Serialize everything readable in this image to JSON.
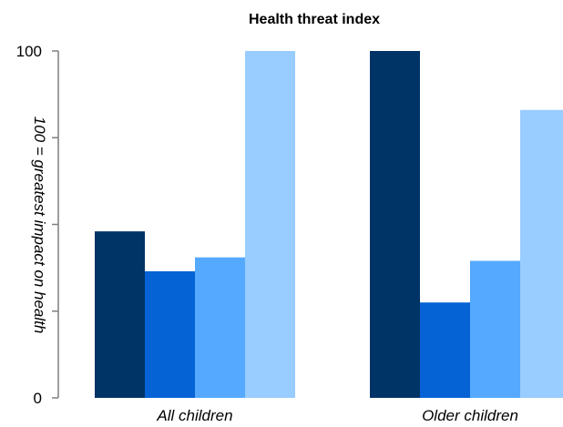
{
  "chart_data": {
    "type": "bar",
    "title": "Health threat index",
    "ylabel": "100 = greatest impact on health",
    "xlabel": "",
    "categories": [
      "All children",
      "Older children"
    ],
    "series": [
      {
        "values": [
          48,
          100
        ],
        "color": "#003366"
      },
      {
        "values": [
          36.5,
          27.5
        ],
        "color": "#0563d6"
      },
      {
        "values": [
          40.5,
          39.5
        ],
        "color": "#55aaff"
      },
      {
        "values": [
          100,
          83
        ],
        "color": "#99ccff"
      }
    ],
    "ylim": [
      0,
      100
    ],
    "yticks": [
      0,
      25,
      50,
      75,
      100
    ],
    "ytick_labels": [
      "0",
      "",
      "",
      "",
      "100"
    ],
    "grid": false,
    "legend": "none"
  }
}
